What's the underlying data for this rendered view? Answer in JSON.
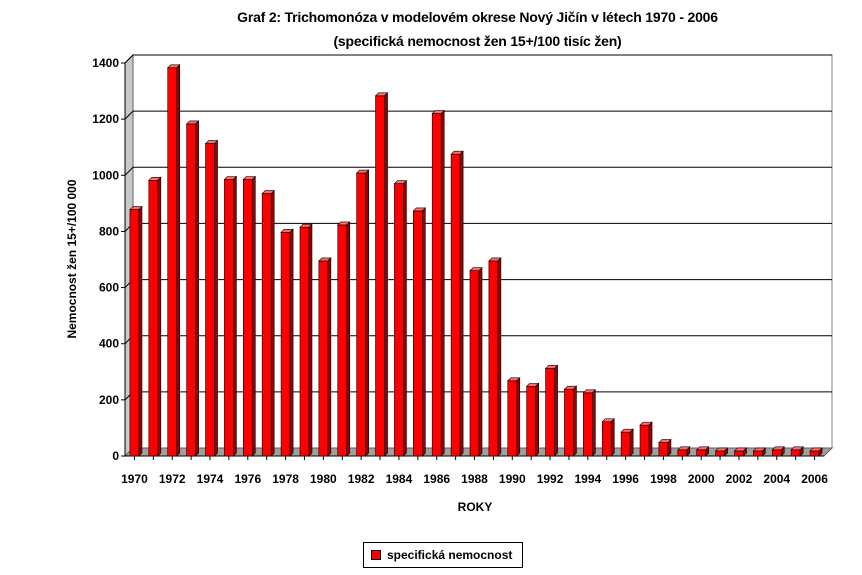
{
  "titles": {
    "line1": "Graf 2: Trichomonóza v modelovém okrese Nový Jičín v létech 1970 - 2006",
    "line2": "(specifická nemocnost žen 15+/100 tisíc žen)"
  },
  "colors": {
    "bar": "#ff0000",
    "bar_top": "#ff6a6a",
    "bar_side": "#990000",
    "floor": "#a0a0a0"
  },
  "chart_data": {
    "type": "bar",
    "title": "Graf 2: Trichomonóza v modelovém okrese Nový Jičín v létech 1970 - 2006",
    "subtitle": "(specifická nemocnost žen 15+/100 tisíc žen)",
    "xlabel": "ROKY",
    "ylabel": "Nemocnost žen 15+/100 000",
    "ylim": [
      0,
      1400
    ],
    "yticks": [
      0,
      200,
      400,
      600,
      800,
      1000,
      1200,
      1400
    ],
    "grid": true,
    "legend_position": "bottom",
    "categories": [
      "1970",
      "1971",
      "1972",
      "1973",
      "1974",
      "1975",
      "1976",
      "1977",
      "1978",
      "1979",
      "1980",
      "1981",
      "1982",
      "1983",
      "1984",
      "1985",
      "1986",
      "1987",
      "1988",
      "1989",
      "1990",
      "1991",
      "1992",
      "1993",
      "1994",
      "1995",
      "1996",
      "1997",
      "1998",
      "1999",
      "2000",
      "2001",
      "2002",
      "2003",
      "2004",
      "2005",
      "2006"
    ],
    "tick_labels": [
      "1970",
      "",
      "1972",
      "",
      "1974",
      "",
      "1976",
      "",
      "1978",
      "",
      "1980",
      "",
      "1982",
      "",
      "1984",
      "",
      "1986",
      "",
      "1988",
      "",
      "1990",
      "",
      "1992",
      "",
      "1994",
      "",
      "1996",
      "",
      "1998",
      "",
      "2000",
      "",
      "2002",
      "",
      "2004",
      "",
      "2006"
    ],
    "series": [
      {
        "name": "specifická nemocnost",
        "values": [
          878,
          982,
          1383,
          1183,
          1113,
          985,
          985,
          935,
          797,
          815,
          695,
          823,
          1008,
          1283,
          970,
          873,
          1220,
          1075,
          660,
          695,
          268,
          248,
          312,
          238,
          225,
          122,
          85,
          110,
          48,
          22,
          22,
          18,
          18,
          18,
          22,
          22,
          18
        ]
      }
    ]
  }
}
